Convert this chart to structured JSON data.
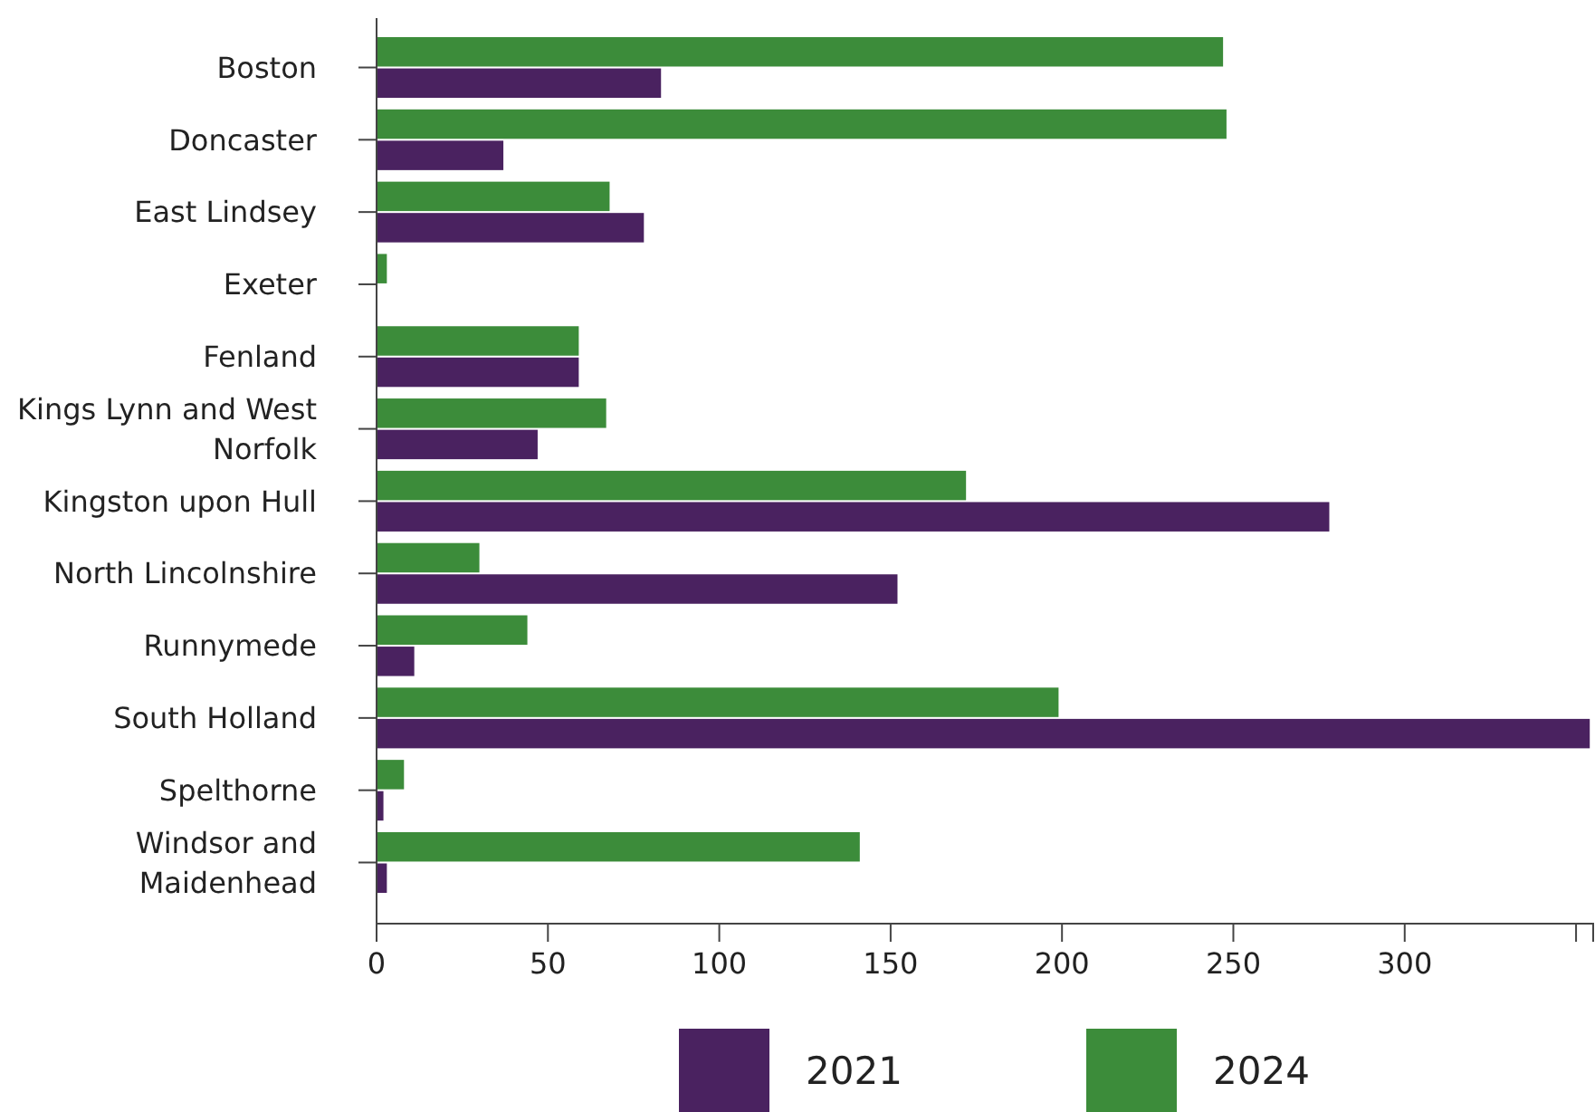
{
  "chart_data": {
    "type": "bar",
    "orientation": "horizontal",
    "categories": [
      "Boston",
      "Doncaster",
      "East Lindsey",
      "Exeter",
      "Fenland",
      "Kings Lynn and West Norfolk",
      "Kingston upon Hull",
      "North Lincolnshire",
      "Runnymede",
      "South Holland",
      "Spelthorne",
      "Windsor and Maidenhead"
    ],
    "series": [
      {
        "name": "2021",
        "color": "#4a2260",
        "values": [
          83,
          37,
          78,
          0,
          59,
          47,
          278,
          152,
          11,
          354,
          2,
          3
        ]
      },
      {
        "name": "2024",
        "color": "#3c8c3a",
        "values": [
          247,
          248,
          68,
          3,
          59,
          67,
          172,
          30,
          44,
          199,
          8,
          141
        ]
      }
    ],
    "xlim": [
      0,
      355
    ],
    "xticks": [
      0,
      50,
      100,
      150,
      200,
      250,
      300,
      {
        "value": 350,
        "label": null
      }
    ],
    "grid": false,
    "legend": "bottom"
  }
}
